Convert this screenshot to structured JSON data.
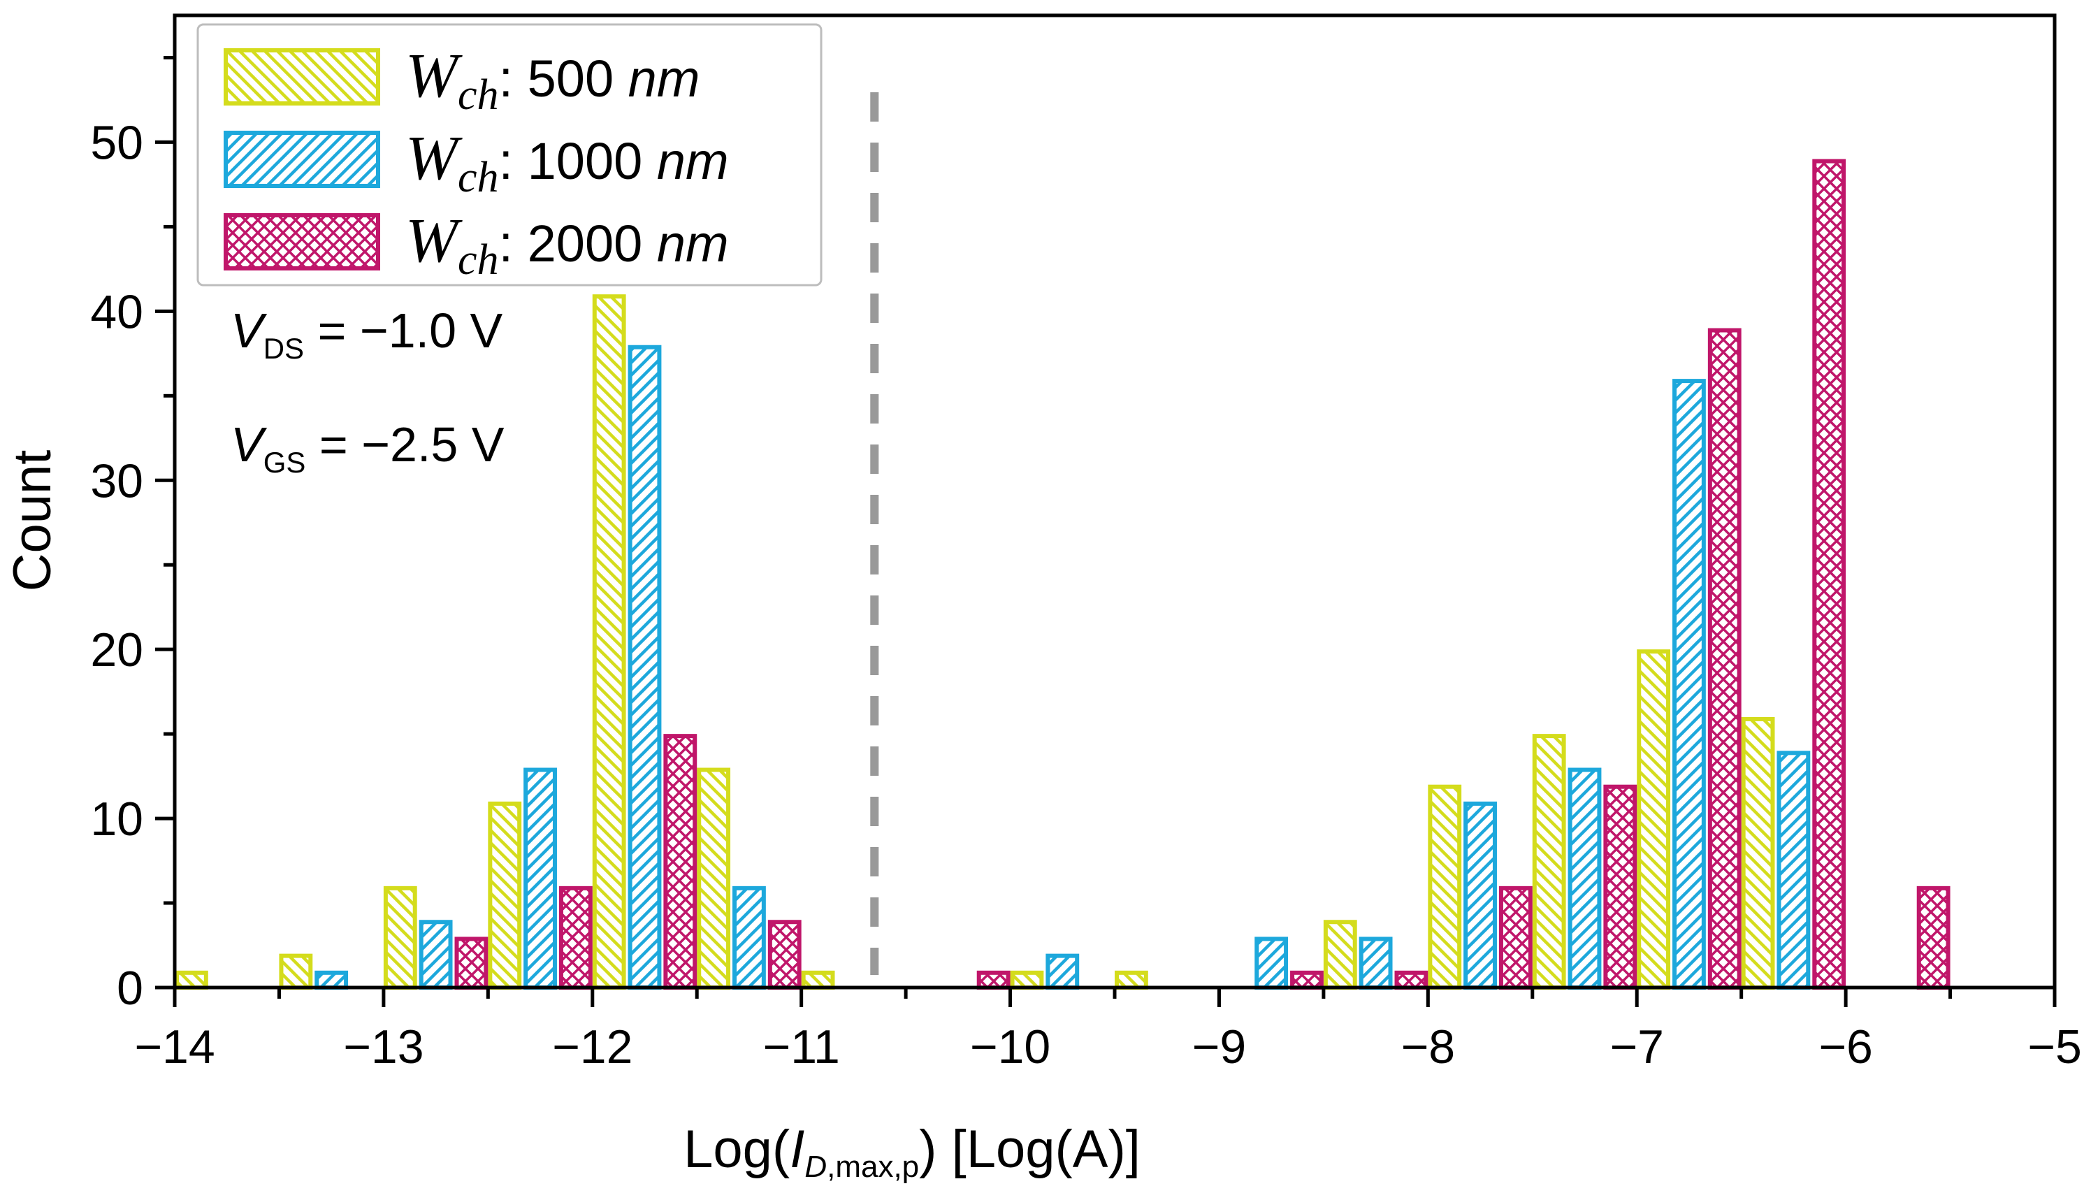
{
  "chart_data": {
    "type": "bar",
    "title": "",
    "xlabel": {
      "prefix": "Log(",
      "var": "I",
      "sub_italic": "D",
      "sub_rest": ",max,p",
      "suffix": ") [Log(A)]"
    },
    "ylabel": "Count",
    "xlim": [
      -14,
      -5
    ],
    "ylim": [
      0,
      57.5
    ],
    "xticks": [
      {
        "value": -14,
        "label": "−14"
      },
      {
        "value": -13,
        "label": "−13"
      },
      {
        "value": -12,
        "label": "−12"
      },
      {
        "value": -11,
        "label": "−11"
      },
      {
        "value": -10,
        "label": "−10"
      },
      {
        "value": -9,
        "label": "−9"
      },
      {
        "value": -8,
        "label": "−8"
      },
      {
        "value": -7,
        "label": "−7"
      },
      {
        "value": -6,
        "label": "−6"
      },
      {
        "value": -5,
        "label": "−5"
      }
    ],
    "yticks": [
      {
        "value": 0,
        "label": "0"
      },
      {
        "value": 10,
        "label": "10"
      },
      {
        "value": 20,
        "label": "20"
      },
      {
        "value": 30,
        "label": "30"
      },
      {
        "value": 40,
        "label": "40"
      },
      {
        "value": 50,
        "label": "50"
      }
    ],
    "bin_width": 0.5,
    "bar_width": 0.16,
    "threshold_line": {
      "x": -10.65,
      "style": "dashed",
      "color": "#999999"
    },
    "series": [
      {
        "name": "500 nm",
        "legend_var": "W",
        "legend_sub": "ch",
        "legend_value": ": 500",
        "legend_unit": "nm",
        "color": "#d4dc1c",
        "pattern": "diagonal-hatch-back",
        "offset": 0.08,
        "bins": [
          {
            "bin": -14.0,
            "count": 1
          },
          {
            "bin": -13.5,
            "count": 2
          },
          {
            "bin": -13.0,
            "count": 6
          },
          {
            "bin": -12.5,
            "count": 11
          },
          {
            "bin": -12.0,
            "count": 41
          },
          {
            "bin": -11.5,
            "count": 13
          },
          {
            "bin": -11.0,
            "count": 1
          },
          {
            "bin": -10.0,
            "count": 1
          },
          {
            "bin": -9.5,
            "count": 1
          },
          {
            "bin": -8.5,
            "count": 4
          },
          {
            "bin": -8.0,
            "count": 12
          },
          {
            "bin": -7.5,
            "count": 15
          },
          {
            "bin": -7.0,
            "count": 20
          },
          {
            "bin": -6.5,
            "count": 16
          }
        ]
      },
      {
        "name": "1000 nm",
        "legend_var": "W",
        "legend_sub": "ch",
        "legend_value": ": 1000",
        "legend_unit": "nm",
        "color": "#1da8dc",
        "pattern": "diagonal-hatch-fwd",
        "offset": 0.25,
        "bins": [
          {
            "bin": -13.5,
            "count": 1
          },
          {
            "bin": -13.0,
            "count": 4
          },
          {
            "bin": -12.5,
            "count": 13
          },
          {
            "bin": -12.0,
            "count": 38
          },
          {
            "bin": -11.5,
            "count": 6
          },
          {
            "bin": -10.0,
            "count": 2
          },
          {
            "bin": -9.0,
            "count": 3
          },
          {
            "bin": -8.5,
            "count": 3
          },
          {
            "bin": -8.0,
            "count": 11
          },
          {
            "bin": -7.5,
            "count": 13
          },
          {
            "bin": -7.0,
            "count": 36
          },
          {
            "bin": -6.5,
            "count": 14
          }
        ]
      },
      {
        "name": "2000 nm",
        "legend_var": "W",
        "legend_sub": "ch",
        "legend_value": ": 2000",
        "legend_unit": "nm",
        "color": "#c0166a",
        "pattern": "cross-hatch",
        "offset": 0.42,
        "bins": [
          {
            "bin": -13.0,
            "count": 3
          },
          {
            "bin": -12.5,
            "count": 6
          },
          {
            "bin": -12.0,
            "count": 15
          },
          {
            "bin": -11.5,
            "count": 4
          },
          {
            "bin": -10.5,
            "count": 1
          },
          {
            "bin": -9.0,
            "count": 1
          },
          {
            "bin": -8.5,
            "count": 1
          },
          {
            "bin": -8.0,
            "count": 6
          },
          {
            "bin": -7.5,
            "count": 12
          },
          {
            "bin": -7.0,
            "count": 39
          },
          {
            "bin": -6.5,
            "count": 49
          },
          {
            "bin": -6.0,
            "count": 6
          }
        ]
      }
    ],
    "annotations": [
      {
        "var": "V",
        "sub": "DS",
        "text": " = −1.0 V"
      },
      {
        "var": "V",
        "sub": "GS",
        "text": " = −2.5 V"
      }
    ],
    "legend_position": "top-left",
    "grid": false
  }
}
